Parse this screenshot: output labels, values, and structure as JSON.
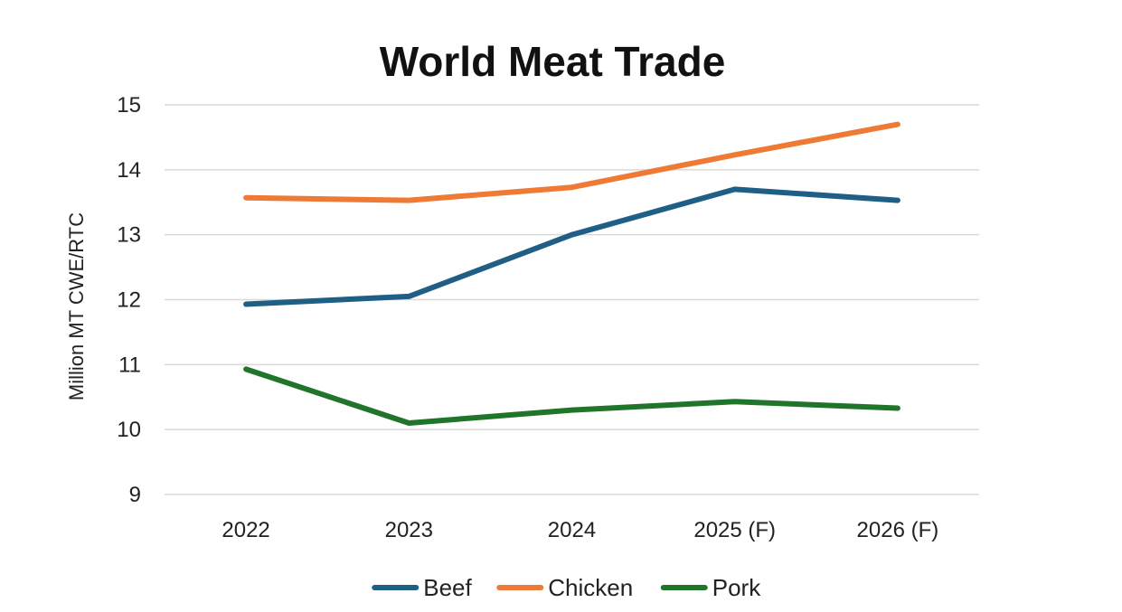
{
  "chart_data": {
    "type": "line",
    "title": "World Meat Trade",
    "xlabel": "",
    "ylabel": "Million MT CWE/RTC",
    "categories": [
      "2022",
      "2023",
      "2024",
      "2025 (F)",
      "2026 (F)"
    ],
    "ylim": [
      9,
      15
    ],
    "yticks": [
      9,
      10,
      11,
      12,
      13,
      14,
      15
    ],
    "grid": true,
    "legend_position": "bottom",
    "series": [
      {
        "name": "Beef",
        "color": "#1f5f85",
        "values": [
          11.93,
          12.05,
          13.0,
          13.7,
          13.53
        ]
      },
      {
        "name": "Chicken",
        "color": "#ee7a35",
        "values": [
          13.57,
          13.53,
          13.73,
          14.23,
          14.7
        ]
      },
      {
        "name": "Pork",
        "color": "#21752b",
        "values": [
          10.93,
          10.1,
          10.3,
          10.43,
          10.33
        ]
      }
    ]
  }
}
